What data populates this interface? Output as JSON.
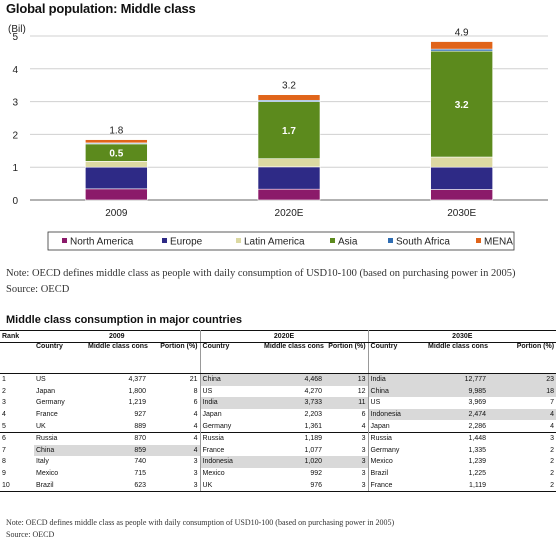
{
  "chart_data": {
    "type": "bar",
    "stacked": true,
    "title": "Global population: Middle class",
    "ylabel": "(Bil)",
    "ylim": [
      0,
      5
    ],
    "yticks": [
      "0",
      "1",
      "2",
      "3",
      "4",
      "5"
    ],
    "grid": true,
    "legend_position": "bottom",
    "categories": [
      "2009",
      "2020E",
      "2030E"
    ],
    "totals": [
      "1.8",
      "3.2",
      "4.9"
    ],
    "series": [
      {
        "name": "North America",
        "color": "#8b1a6a",
        "values": [
          0.34,
          0.33,
          0.32
        ]
      },
      {
        "name": "Europe",
        "color": "#2e2a86",
        "values": [
          0.66,
          0.68,
          0.68
        ]
      },
      {
        "name": "Latin America",
        "color": "#dcd9a2",
        "values": [
          0.18,
          0.25,
          0.31
        ]
      },
      {
        "name": "Asia",
        "color": "#5c8a1d",
        "values": [
          0.53,
          1.74,
          3.23
        ],
        "value_labels": [
          "0.5",
          "1.7",
          "3.2"
        ]
      },
      {
        "name": "South Africa",
        "color": "#2f6db3",
        "values": [
          0.03,
          0.04,
          0.06
        ]
      },
      {
        "name": "MENA",
        "color": "#e0641a",
        "values": [
          0.1,
          0.17,
          0.23
        ]
      }
    ]
  },
  "notes": {
    "chart_note": "Note: OECD defines middle class as people with daily consumption of USD10-100 (based on purchasing power in 2005)",
    "chart_source": "Source: OECD",
    "table_note": "Note: OECD defines middle class as people with daily consumption of USD10-100 (based on purchasing power in 2005)",
    "table_source": "Source: OECD"
  },
  "table": {
    "title": "Middle class consumption in major countries",
    "rank_header": "Rank",
    "years": [
      "2009",
      "2020E",
      "2030E"
    ],
    "col_country": "Country",
    "col_consumption": "Middle class consumption (USDb)",
    "col_portion": "Portion (%)",
    "rows": [
      {
        "rank": "1",
        "c2009": "US",
        "v2009": "4,377",
        "p2009": "21",
        "c2020": "China",
        "v2020": "4,468",
        "p2020": "13",
        "c2030": "India",
        "v2030": "12,777",
        "p2030": "23"
      },
      {
        "rank": "2",
        "c2009": "Japan",
        "v2009": "1,800",
        "p2009": "8",
        "c2020": "US",
        "v2020": "4,270",
        "p2020": "12",
        "c2030": "China",
        "v2030": "9,985",
        "p2030": "18"
      },
      {
        "rank": "3",
        "c2009": "Germany",
        "v2009": "1,219",
        "p2009": "6",
        "c2020": "India",
        "v2020": "3,733",
        "p2020": "11",
        "c2030": "US",
        "v2030": "3,969",
        "p2030": "7"
      },
      {
        "rank": "4",
        "c2009": "France",
        "v2009": "927",
        "p2009": "4",
        "c2020": "Japan",
        "v2020": "2,203",
        "p2020": "6",
        "c2030": "Indonesia",
        "v2030": "2,474",
        "p2030": "4"
      },
      {
        "rank": "5",
        "c2009": "UK",
        "v2009": "889",
        "p2009": "4",
        "c2020": "Germany",
        "v2020": "1,361",
        "p2020": "4",
        "c2030": "Japan",
        "v2030": "2,286",
        "p2030": "4"
      },
      {
        "rank": "6",
        "c2009": "Russia",
        "v2009": "870",
        "p2009": "4",
        "c2020": "Russia",
        "v2020": "1,189",
        "p2020": "3",
        "c2030": "Russia",
        "v2030": "1,448",
        "p2030": "3"
      },
      {
        "rank": "7",
        "c2009": "China",
        "v2009": "859",
        "p2009": "4",
        "c2020": "France",
        "v2020": "1,077",
        "p2020": "3",
        "c2030": "Germany",
        "v2030": "1,335",
        "p2030": "2"
      },
      {
        "rank": "8",
        "c2009": "Italy",
        "v2009": "740",
        "p2009": "3",
        "c2020": "Indonesia",
        "v2020": "1,020",
        "p2020": "3",
        "c2030": "Mexico",
        "v2030": "1,239",
        "p2030": "2"
      },
      {
        "rank": "9",
        "c2009": "Mexico",
        "v2009": "715",
        "p2009": "3",
        "c2020": "Mexico",
        "v2020": "992",
        "p2020": "3",
        "c2030": "Brazil",
        "v2030": "1,225",
        "p2030": "2"
      },
      {
        "rank": "10",
        "c2009": "Brazil",
        "v2009": "623",
        "p2009": "3",
        "c2020": "UK",
        "v2020": "976",
        "p2020": "3",
        "c2030": "France",
        "v2030": "1,119",
        "p2030": "2"
      }
    ],
    "highlighted": [
      "China",
      "India",
      "Indonesia"
    ]
  }
}
